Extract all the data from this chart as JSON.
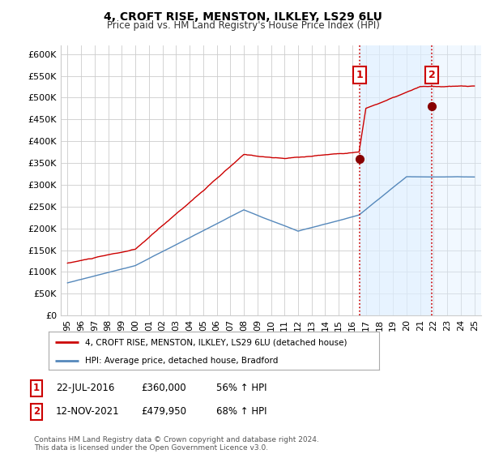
{
  "title": "4, CROFT RISE, MENSTON, ILKLEY, LS29 6LU",
  "subtitle": "Price paid vs. HM Land Registry's House Price Index (HPI)",
  "ylim": [
    0,
    620000
  ],
  "yticks": [
    0,
    50000,
    100000,
    150000,
    200000,
    250000,
    300000,
    350000,
    400000,
    450000,
    500000,
    550000,
    600000
  ],
  "ytick_labels": [
    "£0",
    "£50K",
    "£100K",
    "£150K",
    "£200K",
    "£250K",
    "£300K",
    "£350K",
    "£400K",
    "£450K",
    "£500K",
    "£550K",
    "£600K"
  ],
  "xlim_start": 1994.5,
  "xlim_end": 2025.5,
  "property_color": "#cc0000",
  "hpi_color": "#5588bb",
  "shade_color": "#ddeeff",
  "sale1_year": 2016.55,
  "sale1_price": 360000,
  "sale2_year": 2021.87,
  "sale2_price": 479950,
  "legend_property": "4, CROFT RISE, MENSTON, ILKLEY, LS29 6LU (detached house)",
  "legend_hpi": "HPI: Average price, detached house, Bradford",
  "table_rows": [
    [
      "1",
      "22-JUL-2016",
      "£360,000",
      "56% ↑ HPI"
    ],
    [
      "2",
      "12-NOV-2021",
      "£479,950",
      "68% ↑ HPI"
    ]
  ],
  "footer": "Contains HM Land Registry data © Crown copyright and database right 2024.\nThis data is licensed under the Open Government Licence v3.0.",
  "bg_color": "#ffffff",
  "plot_bg": "#ffffff"
}
